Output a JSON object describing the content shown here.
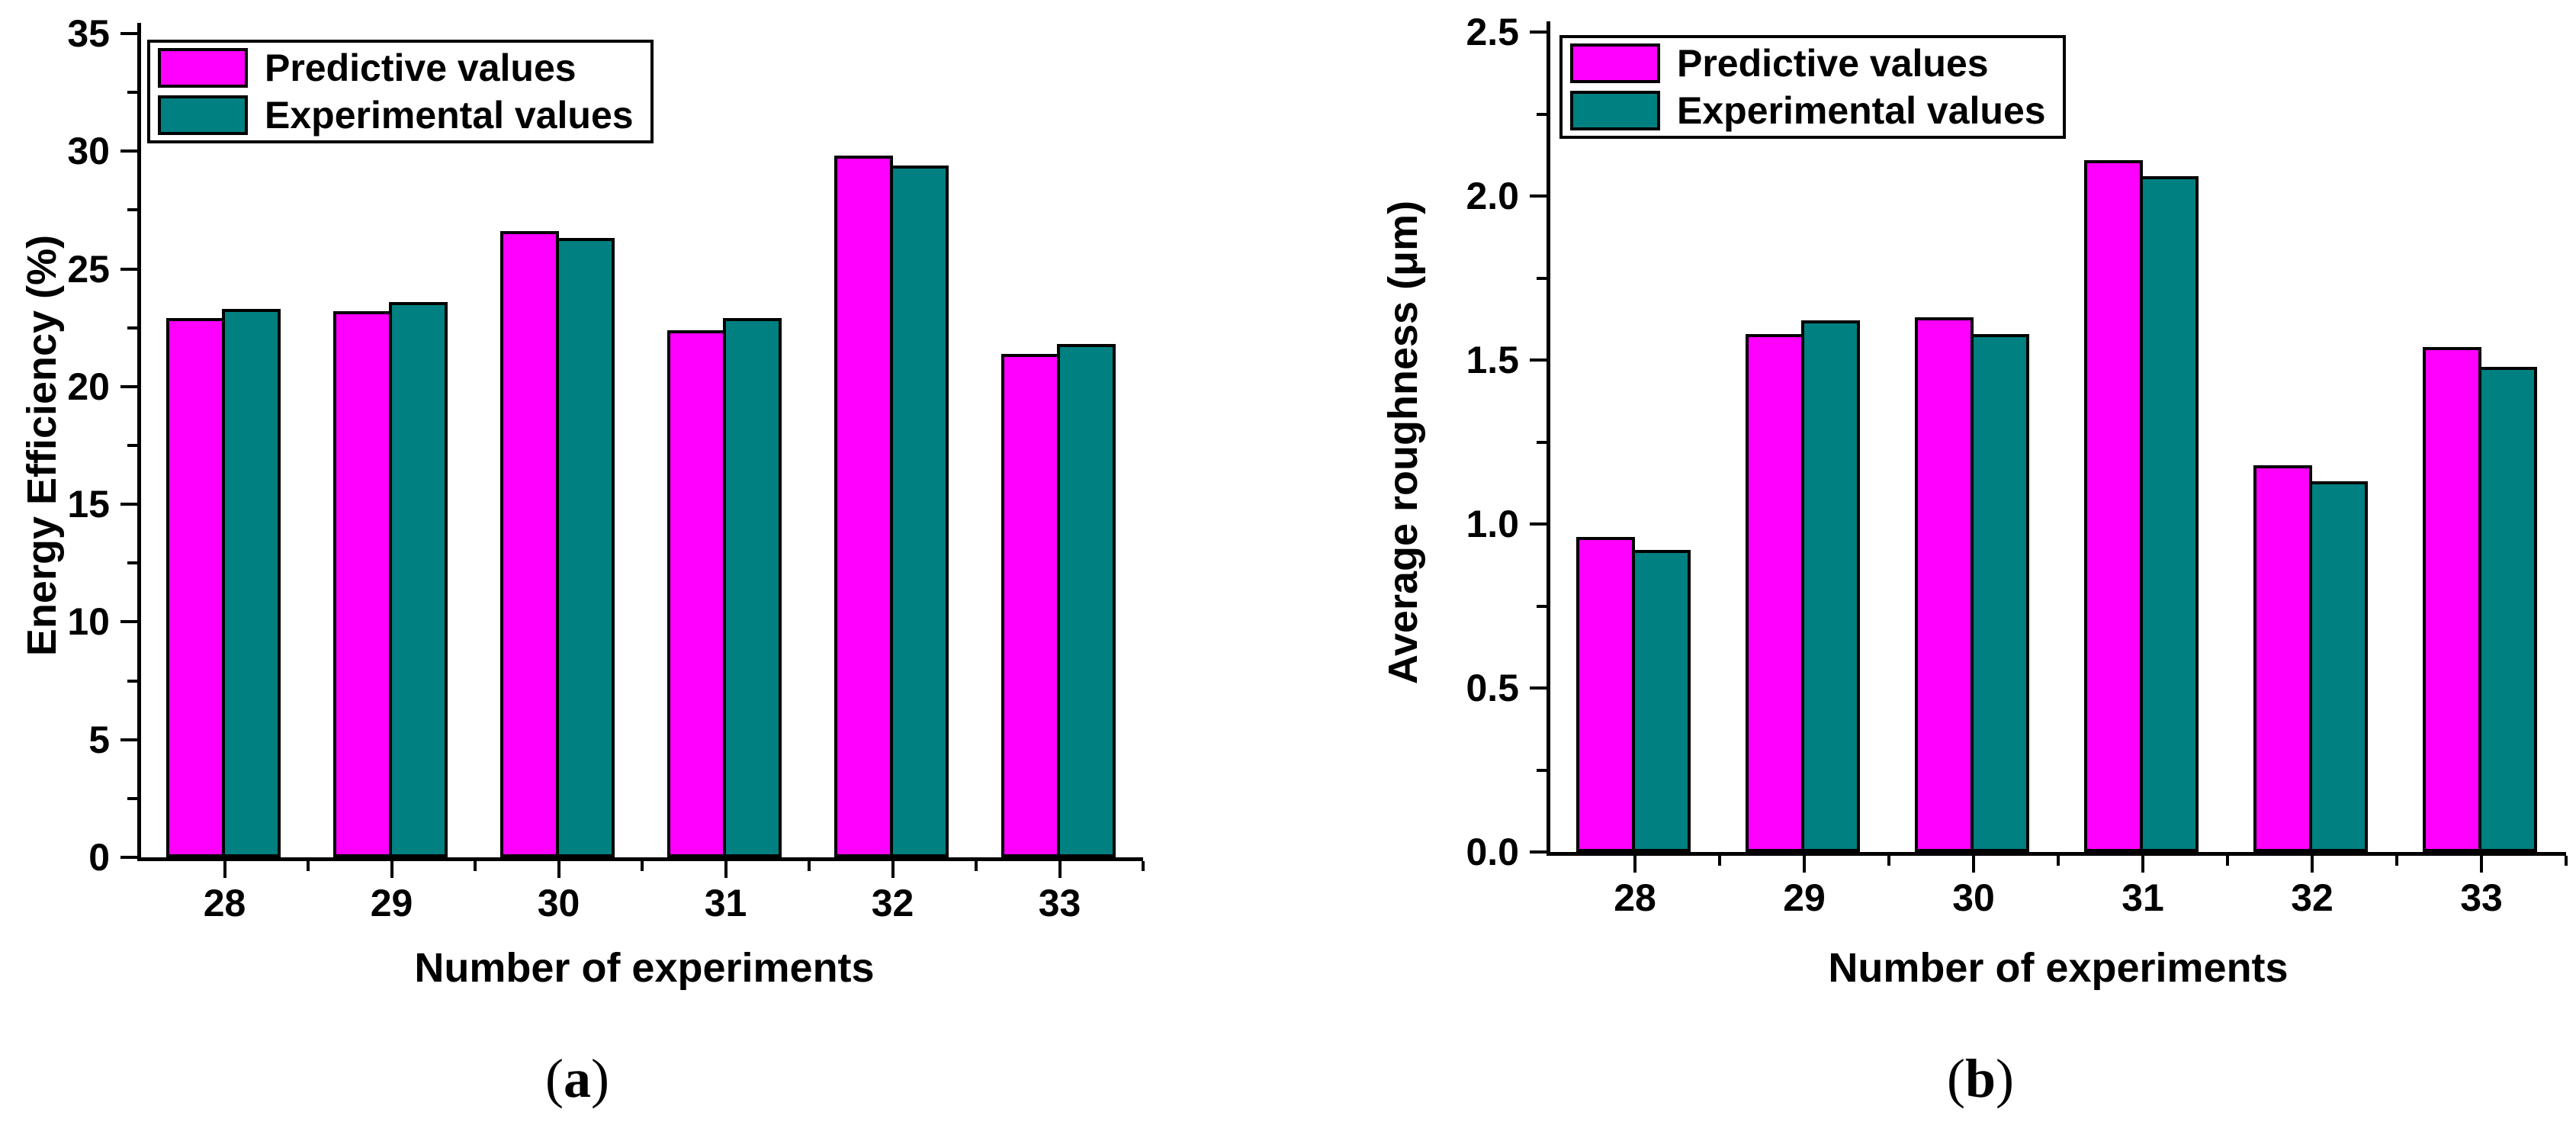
{
  "figure": {
    "background": "#ffffff",
    "captions": [
      {
        "pre": "(",
        "label": "a",
        "post": ")"
      },
      {
        "pre": "(",
        "label": "b",
        "post": ")"
      }
    ]
  },
  "chart_data": [
    {
      "type": "bar",
      "panel": "a",
      "title": "",
      "categories": [
        "28",
        "29",
        "30",
        "31",
        "32",
        "33"
      ],
      "series": [
        {
          "name": "Predictive values",
          "color": "#FF00FF",
          "values": [
            22.9,
            23.2,
            26.6,
            22.4,
            29.8,
            21.4
          ]
        },
        {
          "name": "Experimental values",
          "color": "#008080",
          "values": [
            23.3,
            23.6,
            26.3,
            22.9,
            29.4,
            21.8
          ]
        }
      ],
      "xlabel": "Number of experiments",
      "ylabel": "Energy Efficiency (%)",
      "ylim": [
        0,
        35
      ],
      "ytick_step": 5,
      "ytick_minor_step": 2.5,
      "ytick_labels": [
        "0",
        "5",
        "10",
        "15",
        "20",
        "25",
        "30",
        "35"
      ],
      "grid": false,
      "legend_position": "top-left"
    },
    {
      "type": "bar",
      "panel": "b",
      "title": "",
      "categories": [
        "28",
        "29",
        "30",
        "31",
        "32",
        "33"
      ],
      "series": [
        {
          "name": "Predictive values",
          "color": "#FF00FF",
          "values": [
            0.96,
            1.58,
            1.63,
            2.11,
            1.18,
            1.54
          ]
        },
        {
          "name": "Experimental values",
          "color": "#008080",
          "values": [
            0.92,
            1.62,
            1.58,
            2.06,
            1.13,
            1.48
          ]
        }
      ],
      "xlabel": "Number of experiments",
      "ylabel": "Average roughness (μm)",
      "ylim": [
        0,
        2.5
      ],
      "ytick_step": 0.5,
      "ytick_minor_step": 0.25,
      "ytick_labels": [
        "0.0",
        "0.5",
        "1.0",
        "1.5",
        "2.0",
        "2.5"
      ],
      "grid": false,
      "legend_position": "top-left"
    }
  ]
}
